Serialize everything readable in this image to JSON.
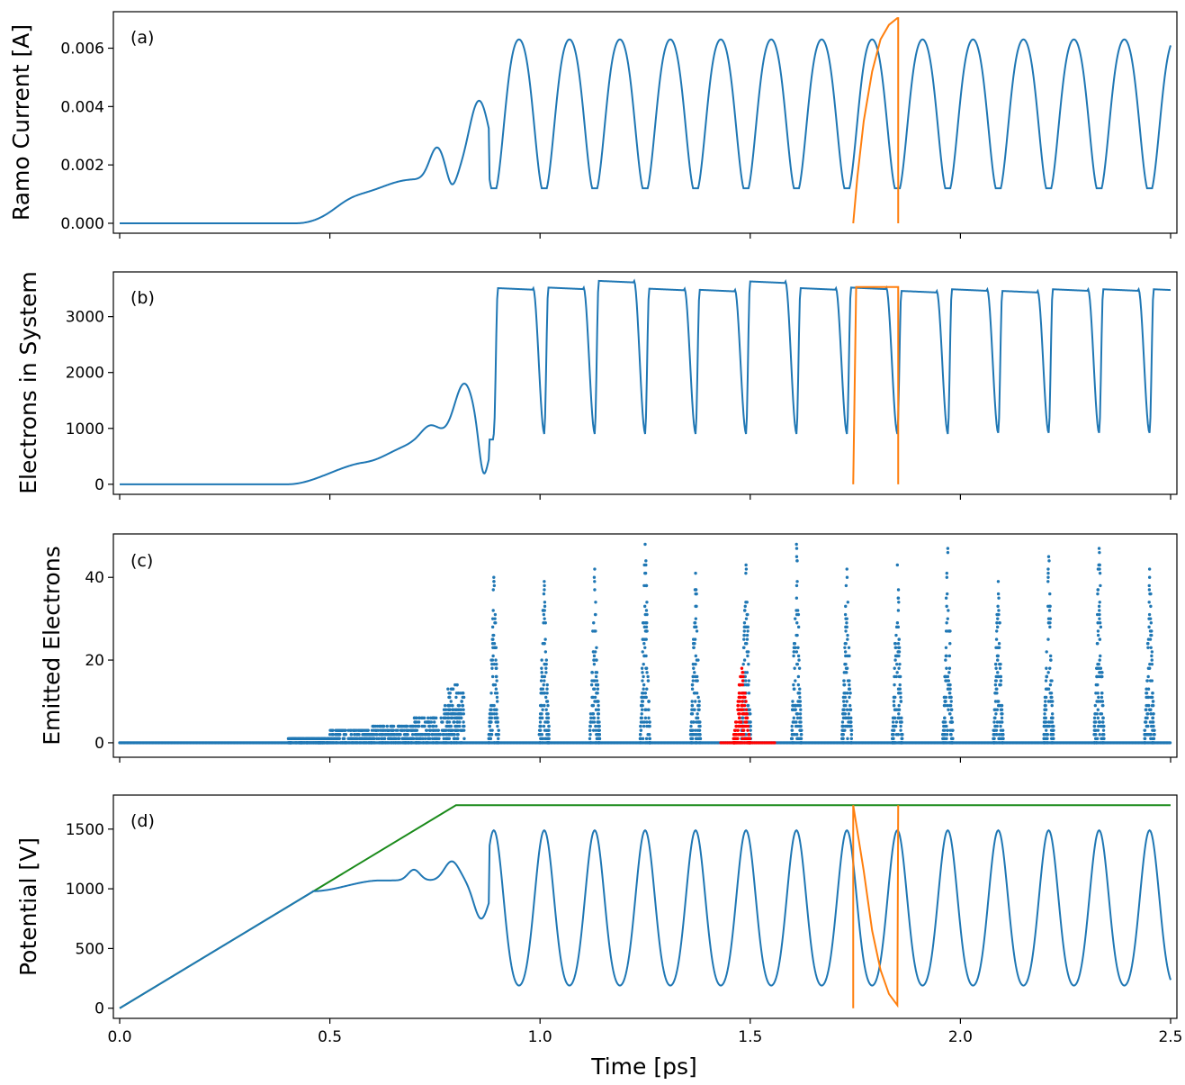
{
  "figure": {
    "xlabel": "Time [ps]",
    "xticks": [
      "0.0",
      "0.5",
      "1.0",
      "1.5",
      "2.0",
      "2.5"
    ],
    "colors": {
      "blue": "#1f77b4",
      "orange": "#ff7f0e",
      "green": "#1a8a1a",
      "red": "#ff0000"
    }
  },
  "chart_data": [
    {
      "panel": "(a)",
      "type": "line",
      "ylabel": "Ramo Current [A]",
      "xlim": [
        -0.015,
        2.515
      ],
      "ylim": [
        -0.00034,
        0.00725
      ],
      "yticks": [
        "0.000",
        "0.002",
        "0.004",
        "0.006"
      ],
      "ytick_values": [
        0,
        0.002,
        0.004,
        0.006
      ],
      "series": [
        {
          "name": "ramo-current",
          "color": "#1f77b4",
          "shape": "ramo"
        },
        {
          "name": "highlight-period",
          "color": "#ff7f0e",
          "points": [
            [
              1.745,
              0
            ],
            [
              1.755,
              0.0016
            ],
            [
              1.77,
              0.0035
            ],
            [
              1.79,
              0.0052
            ],
            [
              1.81,
              0.0063
            ],
            [
              1.83,
              0.0068
            ],
            [
              1.85,
              0.00703
            ],
            [
              1.852,
              0.00703
            ],
            [
              1.852,
              0
            ]
          ]
        }
      ]
    },
    {
      "panel": "(b)",
      "type": "line",
      "ylabel": "Electrons in System",
      "xlim": [
        -0.015,
        2.515
      ],
      "ylim": [
        -180,
        3800
      ],
      "yticks": [
        "0",
        "1000",
        "2000",
        "3000"
      ],
      "ytick_values": [
        0,
        1000,
        2000,
        3000
      ],
      "plateaus": [
        3510,
        3520,
        3640,
        3500,
        3480,
        3630,
        3510,
        3520,
        3460,
        3490,
        3460,
        3490
      ],
      "series": [
        {
          "name": "electrons-in-system",
          "color": "#1f77b4",
          "shape": "electrons"
        },
        {
          "name": "highlight-period",
          "color": "#ff7f0e",
          "points": [
            [
              1.745,
              0
            ],
            [
              1.752,
              3530
            ],
            [
              1.852,
              3530
            ],
            [
              1.852,
              0
            ]
          ]
        }
      ]
    },
    {
      "panel": "(c)",
      "type": "scatter",
      "ylabel": "Emitted Electrons",
      "xlim": [
        -0.015,
        2.515
      ],
      "ylim": [
        -3.5,
        50.5
      ],
      "yticks": [
        "0",
        "20",
        "40"
      ],
      "ytick_values": [
        0,
        20,
        40
      ],
      "burst_centers": [
        0.89,
        1.01,
        1.13,
        1.25,
        1.37,
        1.49,
        1.61,
        1.73,
        1.85,
        1.97,
        2.09,
        2.21,
        2.33,
        2.45
      ],
      "burst_peaks": [
        40,
        39,
        42,
        48,
        41,
        43,
        48,
        42,
        43,
        47,
        39,
        45,
        47,
        42
      ],
      "highlight_burst": {
        "center": 1.48,
        "peak": 18,
        "color": "#ff0000"
      },
      "series": [
        {
          "name": "emitted-electrons",
          "color": "#1f77b4"
        },
        {
          "name": "highlight-burst",
          "color": "#ff0000"
        }
      ]
    },
    {
      "panel": "(d)",
      "type": "line",
      "ylabel": "Potential [V]",
      "xlim": [
        -0.015,
        2.515
      ],
      "ylim": [
        -85,
        1785
      ],
      "yticks": [
        "0",
        "500",
        "1000",
        "1500"
      ],
      "ytick_values": [
        0,
        500,
        1000,
        1500
      ],
      "series": [
        {
          "name": "applied-voltage",
          "color": "#1a8a1a",
          "points": [
            [
              0,
              0
            ],
            [
              0.8,
              1700
            ],
            [
              2.5,
              1700
            ]
          ]
        },
        {
          "name": "gap-potential",
          "color": "#1f77b4",
          "shape": "potential"
        },
        {
          "name": "highlight-period",
          "color": "#ff7f0e",
          "points": [
            [
              1.745,
              0
            ],
            [
              1.745,
              1700
            ],
            [
              1.77,
              1150
            ],
            [
              1.79,
              650
            ],
            [
              1.81,
              320
            ],
            [
              1.83,
              120
            ],
            [
              1.85,
              25
            ],
            [
              1.852,
              1700
            ],
            [
              1.852,
              1700
            ]
          ]
        }
      ]
    }
  ]
}
